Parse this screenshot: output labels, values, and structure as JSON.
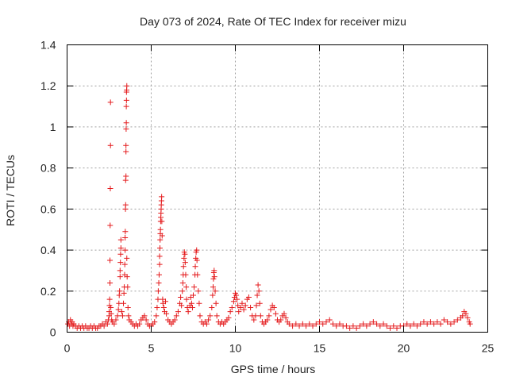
{
  "chart_data": {
    "type": "scatter",
    "title": "Day 073 of 2024, Rate Of TEC Index for receiver mizu",
    "xlabel": "GPS time / hours",
    "ylabel": "ROTI / TECUs",
    "xlim": [
      0,
      25
    ],
    "ylim": [
      0,
      1.4
    ],
    "xticks": [
      0,
      5,
      10,
      15,
      20,
      25
    ],
    "yticks": [
      0,
      0.2,
      0.4,
      0.6,
      0.8,
      1,
      1.2,
      1.4
    ],
    "xtick_labels": [
      "0",
      "5",
      "10",
      "15",
      "20",
      "25"
    ],
    "ytick_labels": [
      "0",
      "0.2",
      "0.4",
      "0.6",
      "0.8",
      "1",
      "1.2",
      "1.4"
    ],
    "grid": true,
    "marker": "+",
    "color": "#e41a1c",
    "series": [
      {
        "points": [
          [
            0.05,
            0.04
          ],
          [
            0.1,
            0.05
          ],
          [
            0.15,
            0.03
          ],
          [
            0.2,
            0.06
          ],
          [
            0.25,
            0.04
          ],
          [
            0.3,
            0.05
          ],
          [
            0.35,
            0.03
          ],
          [
            0.4,
            0.04
          ],
          [
            0.5,
            0.03
          ],
          [
            0.6,
            0.02
          ],
          [
            0.7,
            0.03
          ],
          [
            0.8,
            0.02
          ],
          [
            0.9,
            0.03
          ],
          [
            1.0,
            0.02
          ],
          [
            1.1,
            0.03
          ],
          [
            1.2,
            0.02
          ],
          [
            1.3,
            0.02
          ],
          [
            1.4,
            0.03
          ],
          [
            1.5,
            0.02
          ],
          [
            1.6,
            0.03
          ],
          [
            1.7,
            0.02
          ],
          [
            1.8,
            0.02
          ],
          [
            1.9,
            0.03
          ],
          [
            2.0,
            0.03
          ],
          [
            2.1,
            0.04
          ],
          [
            2.2,
            0.03
          ],
          [
            2.3,
            0.05
          ],
          [
            2.4,
            0.04
          ],
          [
            2.45,
            0.06
          ],
          [
            2.5,
            0.08
          ],
          [
            2.5,
            0.1
          ],
          [
            2.52,
            0.13
          ],
          [
            2.53,
            0.16
          ],
          [
            2.55,
            0.24
          ],
          [
            2.55,
            0.35
          ],
          [
            2.56,
            0.52
          ],
          [
            2.57,
            0.7
          ],
          [
            2.58,
            0.91
          ],
          [
            2.58,
            1.12
          ],
          [
            2.6,
            0.12
          ],
          [
            2.62,
            0.09
          ],
          [
            2.65,
            0.06
          ],
          [
            2.7,
            0.05
          ],
          [
            2.8,
            0.04
          ],
          [
            2.9,
            0.06
          ],
          [
            3.0,
            0.08
          ],
          [
            3.05,
            0.11
          ],
          [
            3.08,
            0.14
          ],
          [
            3.1,
            0.18
          ],
          [
            3.12,
            0.2
          ],
          [
            3.15,
            0.27
          ],
          [
            3.15,
            0.3
          ],
          [
            3.17,
            0.34
          ],
          [
            3.18,
            0.38
          ],
          [
            3.2,
            0.41
          ],
          [
            3.2,
            0.45
          ],
          [
            3.25,
            0.1
          ],
          [
            3.3,
            0.08
          ],
          [
            3.35,
            0.14
          ],
          [
            3.38,
            0.19
          ],
          [
            3.4,
            0.22
          ],
          [
            3.42,
            0.28
          ],
          [
            3.43,
            0.33
          ],
          [
            3.45,
            0.4
          ],
          [
            3.45,
            0.46
          ],
          [
            3.46,
            0.49
          ],
          [
            3.47,
            0.6
          ],
          [
            3.48,
            0.62
          ],
          [
            3.48,
            0.74
          ],
          [
            3.5,
            0.76
          ],
          [
            3.5,
            0.88
          ],
          [
            3.5,
            0.91
          ],
          [
            3.51,
            0.99
          ],
          [
            3.52,
            1.02
          ],
          [
            3.52,
            1.1
          ],
          [
            3.53,
            1.13
          ],
          [
            3.53,
            1.17
          ],
          [
            3.54,
            1.18
          ],
          [
            3.55,
            1.2
          ],
          [
            3.55,
            0.36
          ],
          [
            3.57,
            0.27
          ],
          [
            3.6,
            0.22
          ],
          [
            3.62,
            0.12
          ],
          [
            3.65,
            0.08
          ],
          [
            3.7,
            0.06
          ],
          [
            3.8,
            0.05
          ],
          [
            3.9,
            0.04
          ],
          [
            4.0,
            0.03
          ],
          [
            4.1,
            0.04
          ],
          [
            4.2,
            0.03
          ],
          [
            4.3,
            0.04
          ],
          [
            4.4,
            0.06
          ],
          [
            4.5,
            0.07
          ],
          [
            4.6,
            0.08
          ],
          [
            4.7,
            0.06
          ],
          [
            4.8,
            0.04
          ],
          [
            4.9,
            0.03
          ],
          [
            5.0,
            0.03
          ],
          [
            5.1,
            0.04
          ],
          [
            5.2,
            0.05
          ],
          [
            5.3,
            0.08
          ],
          [
            5.35,
            0.12
          ],
          [
            5.4,
            0.16
          ],
          [
            5.42,
            0.2
          ],
          [
            5.45,
            0.24
          ],
          [
            5.47,
            0.28
          ],
          [
            5.5,
            0.33
          ],
          [
            5.5,
            0.37
          ],
          [
            5.52,
            0.41
          ],
          [
            5.53,
            0.45
          ],
          [
            5.54,
            0.48
          ],
          [
            5.55,
            0.5
          ],
          [
            5.56,
            0.54
          ],
          [
            5.57,
            0.56
          ],
          [
            5.58,
            0.58
          ],
          [
            5.59,
            0.6
          ],
          [
            5.6,
            0.62
          ],
          [
            5.61,
            0.64
          ],
          [
            5.62,
            0.66
          ],
          [
            5.63,
            0.54
          ],
          [
            5.65,
            0.47
          ],
          [
            5.68,
            0.16
          ],
          [
            5.7,
            0.14
          ],
          [
            5.75,
            0.12
          ],
          [
            5.8,
            0.1
          ],
          [
            5.85,
            0.15
          ],
          [
            5.9,
            0.09
          ],
          [
            6.0,
            0.06
          ],
          [
            6.1,
            0.05
          ],
          [
            6.2,
            0.04
          ],
          [
            6.3,
            0.05
          ],
          [
            6.4,
            0.06
          ],
          [
            6.5,
            0.08
          ],
          [
            6.6,
            0.1
          ],
          [
            6.7,
            0.14
          ],
          [
            6.75,
            0.17
          ],
          [
            6.8,
            0.13
          ],
          [
            6.85,
            0.2
          ],
          [
            6.88,
            0.24
          ],
          [
            6.9,
            0.28
          ],
          [
            6.92,
            0.32
          ],
          [
            6.95,
            0.36
          ],
          [
            6.97,
            0.39
          ],
          [
            7.0,
            0.38
          ],
          [
            7.02,
            0.34
          ],
          [
            7.05,
            0.28
          ],
          [
            7.08,
            0.22
          ],
          [
            7.1,
            0.16
          ],
          [
            7.15,
            0.12
          ],
          [
            7.2,
            0.1
          ],
          [
            7.3,
            0.13
          ],
          [
            7.35,
            0.17
          ],
          [
            7.4,
            0.14
          ],
          [
            7.45,
            0.12
          ],
          [
            7.5,
            0.18
          ],
          [
            7.55,
            0.22
          ],
          [
            7.6,
            0.28
          ],
          [
            7.62,
            0.32
          ],
          [
            7.65,
            0.36
          ],
          [
            7.67,
            0.39
          ],
          [
            7.7,
            0.4
          ],
          [
            7.72,
            0.35
          ],
          [
            7.75,
            0.28
          ],
          [
            7.8,
            0.2
          ],
          [
            7.85,
            0.14
          ],
          [
            7.9,
            0.08
          ],
          [
            8.0,
            0.05
          ],
          [
            8.1,
            0.04
          ],
          [
            8.2,
            0.05
          ],
          [
            8.3,
            0.04
          ],
          [
            8.4,
            0.06
          ],
          [
            8.5,
            0.08
          ],
          [
            8.6,
            0.12
          ],
          [
            8.65,
            0.18
          ],
          [
            8.68,
            0.22
          ],
          [
            8.7,
            0.26
          ],
          [
            8.72,
            0.29
          ],
          [
            8.74,
            0.3
          ],
          [
            8.76,
            0.27
          ],
          [
            8.8,
            0.2
          ],
          [
            8.85,
            0.14
          ],
          [
            8.9,
            0.08
          ],
          [
            9.0,
            0.05
          ],
          [
            9.1,
            0.04
          ],
          [
            9.2,
            0.05
          ],
          [
            9.3,
            0.04
          ],
          [
            9.4,
            0.05
          ],
          [
            9.5,
            0.06
          ],
          [
            9.6,
            0.07
          ],
          [
            9.7,
            0.1
          ],
          [
            9.8,
            0.12
          ],
          [
            9.9,
            0.15
          ],
          [
            9.95,
            0.17
          ],
          [
            10.0,
            0.19
          ],
          [
            10.05,
            0.18
          ],
          [
            10.1,
            0.16
          ],
          [
            10.15,
            0.13
          ],
          [
            10.2,
            0.1
          ],
          [
            10.3,
            0.12
          ],
          [
            10.4,
            0.14
          ],
          [
            10.5,
            0.11
          ],
          [
            10.6,
            0.13
          ],
          [
            10.7,
            0.16
          ],
          [
            10.8,
            0.17
          ],
          [
            10.9,
            0.12
          ],
          [
            11.0,
            0.08
          ],
          [
            11.1,
            0.06
          ],
          [
            11.2,
            0.08
          ],
          [
            11.25,
            0.13
          ],
          [
            11.3,
            0.18
          ],
          [
            11.35,
            0.23
          ],
          [
            11.4,
            0.2
          ],
          [
            11.45,
            0.14
          ],
          [
            11.5,
            0.08
          ],
          [
            11.6,
            0.05
          ],
          [
            11.7,
            0.04
          ],
          [
            11.8,
            0.05
          ],
          [
            11.9,
            0.06
          ],
          [
            12.0,
            0.08
          ],
          [
            12.1,
            0.11
          ],
          [
            12.2,
            0.13
          ],
          [
            12.3,
            0.12
          ],
          [
            12.4,
            0.09
          ],
          [
            12.5,
            0.06
          ],
          [
            12.6,
            0.05
          ],
          [
            12.7,
            0.06
          ],
          [
            12.8,
            0.08
          ],
          [
            12.9,
            0.09
          ],
          [
            13.0,
            0.07
          ],
          [
            13.1,
            0.05
          ],
          [
            13.2,
            0.04
          ],
          [
            13.4,
            0.03
          ],
          [
            13.6,
            0.04
          ],
          [
            13.8,
            0.03
          ],
          [
            14.0,
            0.04
          ],
          [
            14.2,
            0.03
          ],
          [
            14.4,
            0.04
          ],
          [
            14.6,
            0.03
          ],
          [
            14.8,
            0.04
          ],
          [
            15.0,
            0.05
          ],
          [
            15.2,
            0.04
          ],
          [
            15.4,
            0.05
          ],
          [
            15.6,
            0.06
          ],
          [
            15.8,
            0.04
          ],
          [
            16.0,
            0.03
          ],
          [
            16.2,
            0.04
          ],
          [
            16.4,
            0.03
          ],
          [
            16.6,
            0.03
          ],
          [
            16.8,
            0.02
          ],
          [
            17.0,
            0.03
          ],
          [
            17.2,
            0.02
          ],
          [
            17.4,
            0.03
          ],
          [
            17.6,
            0.04
          ],
          [
            17.8,
            0.03
          ],
          [
            18.0,
            0.04
          ],
          [
            18.2,
            0.05
          ],
          [
            18.4,
            0.04
          ],
          [
            18.6,
            0.03
          ],
          [
            18.8,
            0.04
          ],
          [
            19.0,
            0.03
          ],
          [
            19.2,
            0.02
          ],
          [
            19.4,
            0.03
          ],
          [
            19.6,
            0.02
          ],
          [
            19.8,
            0.03
          ],
          [
            20.0,
            0.03
          ],
          [
            20.2,
            0.04
          ],
          [
            20.4,
            0.03
          ],
          [
            20.6,
            0.04
          ],
          [
            20.8,
            0.03
          ],
          [
            21.0,
            0.04
          ],
          [
            21.2,
            0.05
          ],
          [
            21.4,
            0.04
          ],
          [
            21.6,
            0.05
          ],
          [
            21.8,
            0.04
          ],
          [
            22.0,
            0.05
          ],
          [
            22.2,
            0.04
          ],
          [
            22.4,
            0.06
          ],
          [
            22.6,
            0.05
          ],
          [
            22.8,
            0.04
          ],
          [
            23.0,
            0.05
          ],
          [
            23.2,
            0.06
          ],
          [
            23.4,
            0.07
          ],
          [
            23.5,
            0.08
          ],
          [
            23.6,
            0.1
          ],
          [
            23.7,
            0.09
          ],
          [
            23.8,
            0.07
          ],
          [
            23.9,
            0.05
          ],
          [
            23.95,
            0.04
          ]
        ]
      }
    ]
  }
}
